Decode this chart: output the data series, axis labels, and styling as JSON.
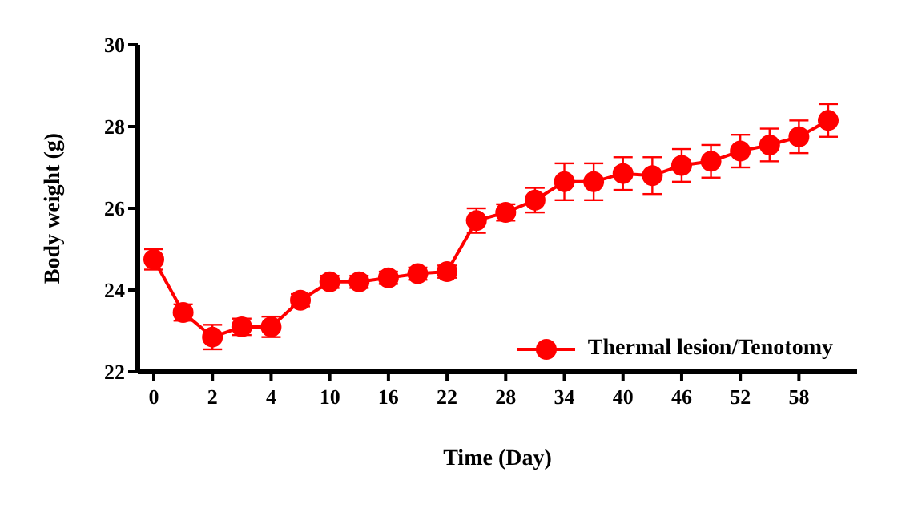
{
  "chart_data": {
    "type": "line",
    "xlabel": "Time (Day)",
    "ylabel": "Body weight (g)",
    "categories": [
      "0",
      null,
      "2",
      null,
      "4",
      null,
      "10",
      null,
      "16",
      null,
      "22",
      null,
      "28",
      null,
      "34",
      null,
      "40",
      null,
      "46",
      null,
      "52",
      null,
      "58",
      null
    ],
    "series": [
      {
        "name": "Thermal lesion/Tenotomy",
        "color": "#ff0000",
        "values": [
          24.75,
          23.45,
          22.85,
          23.1,
          23.1,
          23.75,
          24.2,
          24.2,
          24.3,
          24.4,
          24.45,
          25.7,
          25.9,
          26.2,
          26.65,
          26.65,
          26.85,
          26.8,
          27.05,
          27.15,
          27.4,
          27.55,
          27.75,
          28.15
        ],
        "errors": [
          0.25,
          0.2,
          0.3,
          0.2,
          0.25,
          0.15,
          0.15,
          0.15,
          0.15,
          0.15,
          0.15,
          0.3,
          0.2,
          0.3,
          0.45,
          0.45,
          0.4,
          0.45,
          0.4,
          0.4,
          0.4,
          0.4,
          0.4,
          0.4
        ]
      }
    ],
    "ylim": [
      22,
      30
    ],
    "yticks": [
      22,
      24,
      26,
      28,
      30
    ],
    "grid": false,
    "legend": "bottom right",
    "marker": "circle",
    "line_style": "solid"
  }
}
